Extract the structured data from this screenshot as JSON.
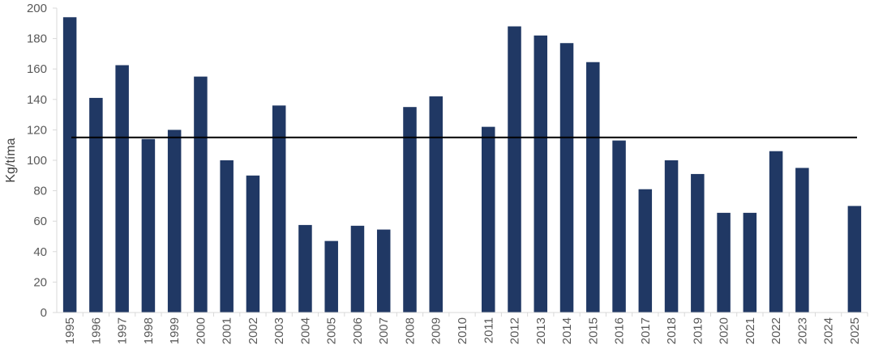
{
  "chart_data": {
    "type": "bar",
    "title": "",
    "xlabel": "",
    "ylabel": "Kg/tíma",
    "ylim": [
      0,
      200
    ],
    "yticks": [
      0,
      20,
      40,
      60,
      80,
      100,
      120,
      140,
      160,
      180,
      200
    ],
    "grid": false,
    "legend": "none",
    "bar_color": "#203864",
    "reference_line": {
      "value": 115,
      "color": "#000000"
    },
    "categories": [
      "1995",
      "1996",
      "1997",
      "1998",
      "1999",
      "2000",
      "2001",
      "2002",
      "2003",
      "2004",
      "2005",
      "2006",
      "2007",
      "2008",
      "2009",
      "2010",
      "2011",
      "2012",
      "2013",
      "2014",
      "2015",
      "2016",
      "2017",
      "2018",
      "2019",
      "2020",
      "2021",
      "2022",
      "2023",
      "2024",
      "2025"
    ],
    "values": [
      194,
      141,
      162.5,
      114,
      120,
      155,
      100,
      90,
      136,
      57.5,
      47,
      57,
      54.5,
      135,
      142,
      null,
      122,
      188,
      182,
      177,
      164.5,
      113,
      81,
      100,
      91,
      65.5,
      65.5,
      106,
      95,
      null,
      70
    ]
  }
}
